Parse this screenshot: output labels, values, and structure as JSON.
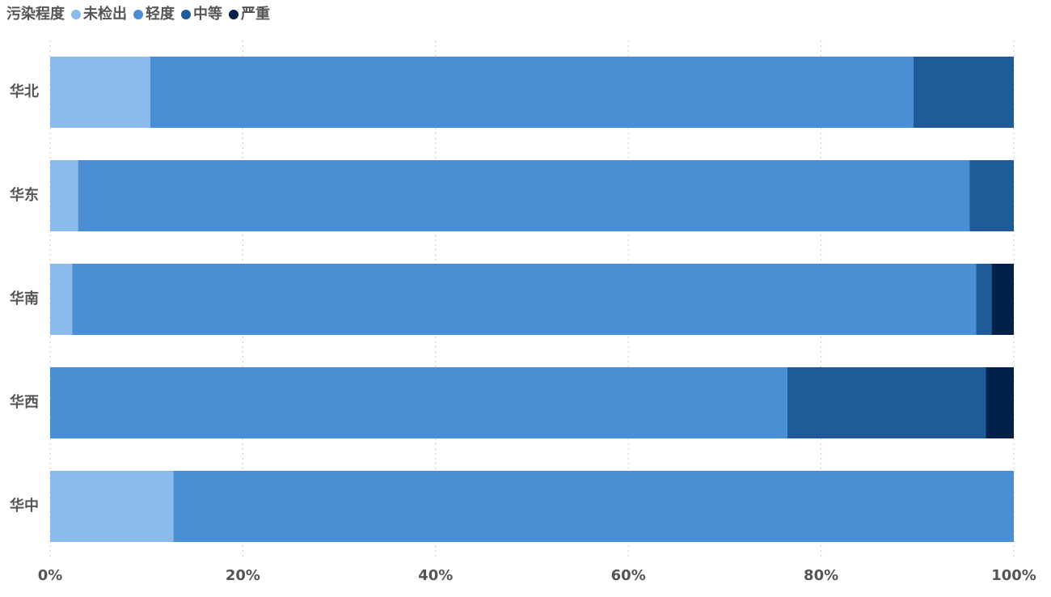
{
  "chart_data": {
    "type": "stacked-barh",
    "legend_title": "污染程度",
    "categories": [
      "华北",
      "华东",
      "华南",
      "华西",
      "华中"
    ],
    "series": [
      {
        "name": "未检出",
        "color": "#8bbbea",
        "values": [
          10.4,
          2.9,
          2.3,
          0,
          12.8
        ]
      },
      {
        "name": "轻度",
        "color": "#4a8ed4",
        "values": [
          79.2,
          92.5,
          93.8,
          76.5,
          87.2
        ]
      },
      {
        "name": "中等",
        "color": "#1f5a99",
        "values": [
          10.4,
          4.6,
          1.6,
          20.6,
          0
        ]
      },
      {
        "name": "严重",
        "color": "#02214a",
        "values": [
          0,
          0,
          2.3,
          2.9,
          0
        ]
      }
    ],
    "xlim": [
      0,
      100
    ],
    "xticks": [
      {
        "value": 0,
        "label": "0%"
      },
      {
        "value": 20,
        "label": "20%"
      },
      {
        "value": 40,
        "label": "40%"
      },
      {
        "value": 60,
        "label": "60%"
      },
      {
        "value": 80,
        "label": "80%"
      },
      {
        "value": 100,
        "label": "100%"
      }
    ],
    "grid": true,
    "legend_position": "top-left"
  }
}
